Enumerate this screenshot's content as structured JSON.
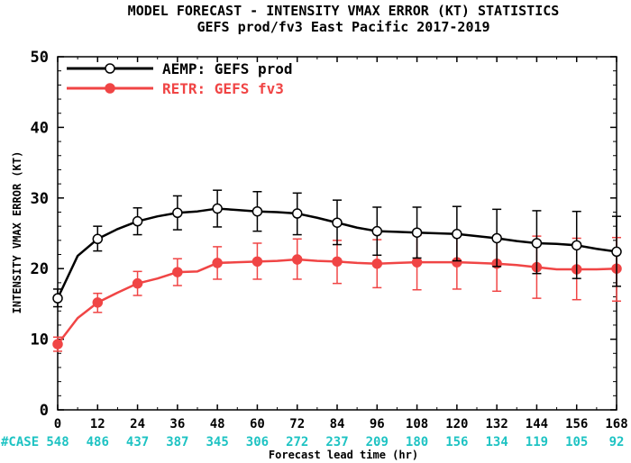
{
  "chart_data": {
    "type": "line",
    "title": "MODEL FORECAST - INTENSITY VMAX ERROR (KT) STATISTICS",
    "subtitle": "GEFS prod/fv3 East Pacific 2017-2019",
    "xlabel": "Forecast lead time (hr)",
    "ylabel": "INTENSITY VMAX ERROR (KT)",
    "xlim": [
      0,
      168
    ],
    "ylim": [
      0,
      50
    ],
    "x_ticks": [
      0,
      12,
      24,
      36,
      48,
      60,
      72,
      84,
      96,
      108,
      120,
      132,
      144,
      156,
      168
    ],
    "y_ticks": [
      0,
      10,
      20,
      30,
      40,
      50
    ],
    "grid": false,
    "legend_position": "top-left",
    "series": [
      {
        "name": "AEMP: GEFS prod",
        "color": "#000000",
        "marker": "open-circle",
        "x": [
          0,
          6,
          12,
          18,
          24,
          30,
          36,
          42,
          48,
          54,
          60,
          66,
          72,
          78,
          84,
          90,
          96,
          102,
          108,
          114,
          120,
          126,
          132,
          138,
          144,
          150,
          156,
          162,
          168
        ],
        "y": [
          15.8,
          21.8,
          24.2,
          25.6,
          26.7,
          27.4,
          27.9,
          28.1,
          28.5,
          28.3,
          28.1,
          28.0,
          27.8,
          27.2,
          26.5,
          25.8,
          25.3,
          25.2,
          25.1,
          25.0,
          24.9,
          24.6,
          24.3,
          23.9,
          23.6,
          23.5,
          23.3,
          22.8,
          22.4
        ],
        "marker_x": [
          0,
          12,
          24,
          36,
          48,
          60,
          72,
          84,
          96,
          108,
          120,
          132,
          144,
          156,
          168
        ],
        "marker_y": [
          15.8,
          24.2,
          26.7,
          27.9,
          28.5,
          28.1,
          27.8,
          26.5,
          25.3,
          25.1,
          24.9,
          24.3,
          23.6,
          23.3,
          22.4
        ],
        "err_low": [
          14.6,
          22.5,
          24.8,
          25.5,
          25.9,
          25.3,
          24.8,
          23.4,
          21.9,
          21.5,
          21.1,
          20.3,
          19.3,
          18.6,
          17.5
        ],
        "err_high": [
          17.1,
          26.0,
          28.6,
          30.3,
          31.1,
          30.9,
          30.7,
          29.7,
          28.7,
          28.7,
          28.8,
          28.4,
          28.2,
          28.1,
          27.4
        ]
      },
      {
        "name": "RETR: GEFS fv3",
        "color": "#f04545",
        "marker": "filled-circle",
        "x": [
          0,
          6,
          12,
          18,
          24,
          30,
          36,
          42,
          48,
          54,
          60,
          66,
          72,
          78,
          84,
          90,
          96,
          102,
          108,
          114,
          120,
          126,
          132,
          138,
          144,
          150,
          156,
          162,
          168
        ],
        "y": [
          9.3,
          13.0,
          15.2,
          16.6,
          17.9,
          18.6,
          19.5,
          19.6,
          20.8,
          20.9,
          21.0,
          21.1,
          21.3,
          21.1,
          21.0,
          20.8,
          20.7,
          20.8,
          20.9,
          20.9,
          20.9,
          20.8,
          20.7,
          20.5,
          20.2,
          19.9,
          19.9,
          19.9,
          20.0
        ],
        "marker_x": [
          0,
          12,
          24,
          36,
          48,
          60,
          72,
          84,
          96,
          108,
          120,
          132,
          144,
          156,
          168
        ],
        "marker_y": [
          9.3,
          15.2,
          17.9,
          19.5,
          20.8,
          21.0,
          21.3,
          21.0,
          20.7,
          20.9,
          20.9,
          20.7,
          20.2,
          19.9,
          20.0
        ],
        "err_low": [
          8.3,
          13.8,
          16.2,
          17.6,
          18.5,
          18.5,
          18.5,
          17.9,
          17.3,
          17.0,
          17.1,
          16.8,
          15.8,
          15.6,
          15.4
        ],
        "err_high": [
          10.3,
          16.5,
          19.6,
          21.4,
          23.1,
          23.6,
          24.2,
          24.0,
          24.1,
          24.7,
          24.7,
          24.6,
          24.6,
          24.3,
          24.4
        ]
      }
    ],
    "cases_label": "#CASE",
    "cases_color": "#1ec3c3",
    "cases": [
      548,
      486,
      437,
      387,
      345,
      306,
      272,
      237,
      209,
      180,
      156,
      134,
      119,
      105,
      92
    ]
  }
}
